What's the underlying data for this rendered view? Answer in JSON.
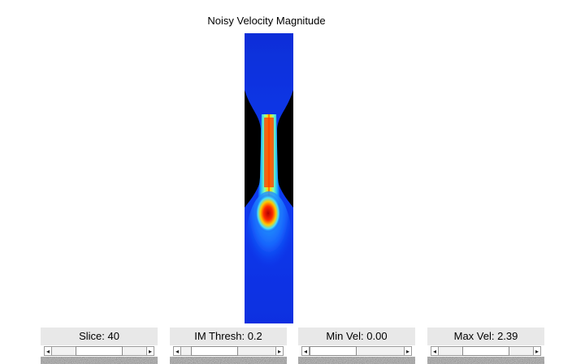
{
  "plot": {
    "title": "Noisy Velocity Magnitude",
    "colormap": "jet"
  },
  "controls": [
    {
      "label": "Slice: 40",
      "value": 0.5
    },
    {
      "label": "IM Thresh: 0.2",
      "value": 0.2
    },
    {
      "label": "Min Vel: 0.00",
      "value": 0.0
    },
    {
      "label": "Max Vel: 2.39",
      "value": 0.5
    }
  ],
  "icons": {
    "left": "◂",
    "right": "▸"
  },
  "colors": {
    "panel_bg": "#e8e8e8",
    "mask": "#000000"
  }
}
